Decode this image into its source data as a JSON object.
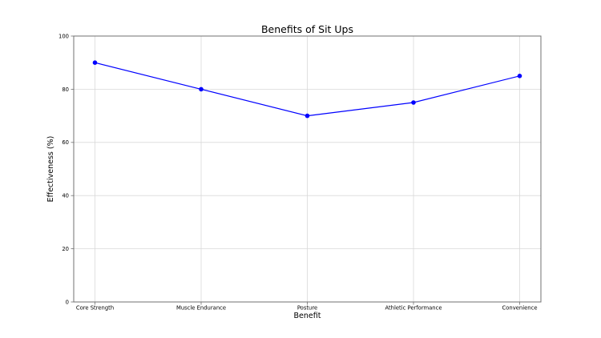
{
  "figure": {
    "background": "#ffffff"
  },
  "chart_data": {
    "type": "line",
    "title": "Benefits of Sit Ups",
    "xlabel": "Benefit",
    "ylabel": "Effectiveness (%)",
    "categories": [
      "Core Strength",
      "Muscle Endurance",
      "Posture",
      "Athletic Performance",
      "Convenience"
    ],
    "series": [
      {
        "name": "Effectiveness",
        "values": [
          90,
          80,
          70,
          75,
          85
        ],
        "color": "#0000ff",
        "marker": "circle"
      }
    ],
    "ylim": [
      0,
      100
    ],
    "yticks": [
      0,
      20,
      40,
      60,
      80,
      100
    ],
    "grid": true,
    "grid_color": "#d9d9d9",
    "axis_color": "#707070",
    "tick_label_color": "#1a1a1a",
    "tick_font_size": 6.8,
    "legend": "none"
  }
}
